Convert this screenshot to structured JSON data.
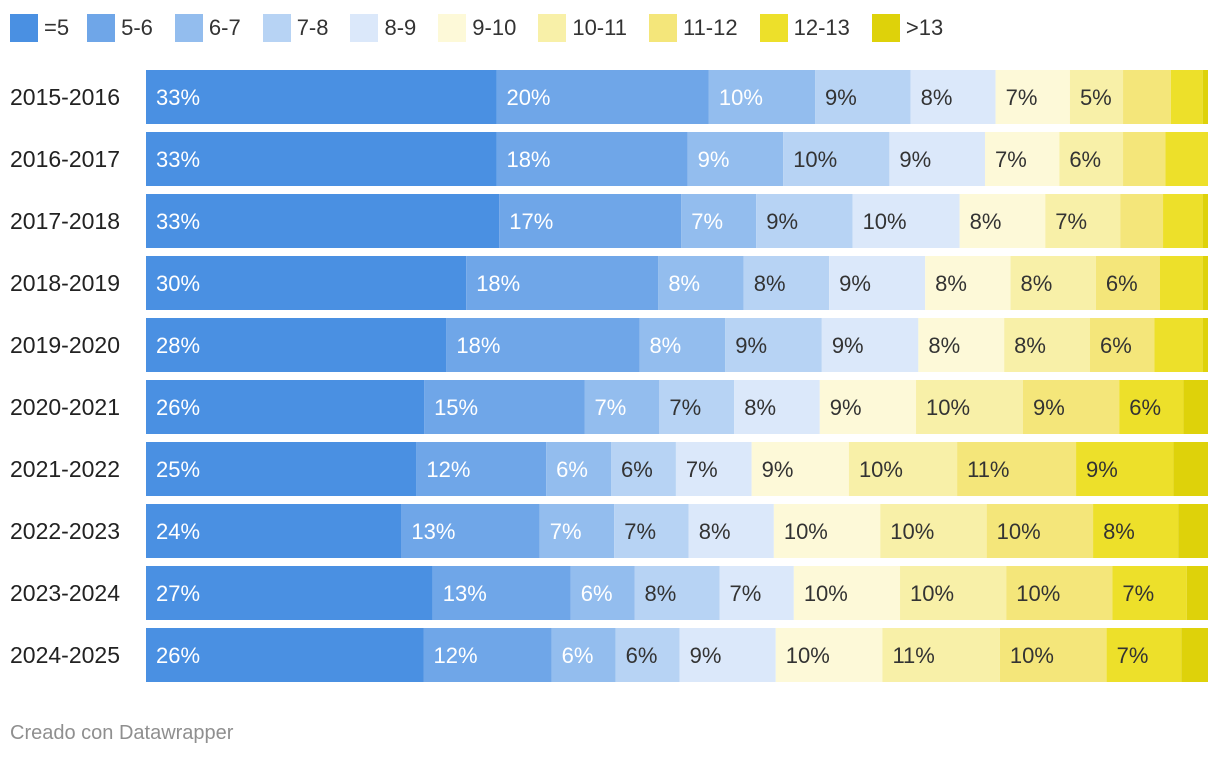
{
  "chart_data": {
    "type": "bar",
    "orientation": "horizontal",
    "stacked": true,
    "normalized_to": 100,
    "categories": [
      "2015-2016",
      "2016-2017",
      "2017-2018",
      "2018-2019",
      "2019-2020",
      "2020-2021",
      "2021-2022",
      "2022-2023",
      "2023-2024",
      "2024-2025"
    ],
    "series": [
      {
        "name": "=5",
        "color": "#4a90e2",
        "values": [
          33,
          33,
          33,
          30,
          28,
          26,
          25,
          24,
          27,
          26
        ],
        "labels": [
          "33%",
          "33%",
          "33%",
          "30%",
          "28%",
          "26%",
          "25%",
          "24%",
          "27%",
          "26%"
        ]
      },
      {
        "name": "5-6",
        "color": "#6fa6e8",
        "values": [
          20,
          18,
          17,
          18,
          18,
          15,
          12,
          13,
          13,
          12
        ],
        "labels": [
          "20%",
          "18%",
          "17%",
          "18%",
          "18%",
          "15%",
          "12%",
          "13%",
          "13%",
          "12%"
        ]
      },
      {
        "name": "6-7",
        "color": "#93bdee",
        "values": [
          10,
          9,
          7,
          8,
          8,
          7,
          6,
          7,
          6,
          6
        ],
        "labels": [
          "10%",
          "9%",
          "7%",
          "8%",
          "8%",
          "7%",
          "6%",
          "7%",
          "6%",
          "6%"
        ]
      },
      {
        "name": "7-8",
        "color": "#b7d3f4",
        "values": [
          9,
          10,
          9,
          8,
          9,
          7,
          6,
          7,
          8,
          6
        ],
        "labels": [
          "9%",
          "10%",
          "9%",
          "8%",
          "9%",
          "7%",
          "6%",
          "7%",
          "8%",
          "6%"
        ]
      },
      {
        "name": "8-9",
        "color": "#dbe8fa",
        "values": [
          8,
          9,
          10,
          9,
          9,
          8,
          7,
          8,
          7,
          9
        ],
        "labels": [
          "8%",
          "9%",
          "10%",
          "9%",
          "9%",
          "8%",
          "7%",
          "8%",
          "7%",
          "9%"
        ]
      },
      {
        "name": "9-10",
        "color": "#fdf9d8",
        "values": [
          7,
          7,
          8,
          8,
          8,
          9,
          9,
          10,
          10,
          10
        ],
        "labels": [
          "7%",
          "7%",
          "8%",
          "8%",
          "8%",
          "9%",
          "9%",
          "10%",
          "10%",
          "10%"
        ]
      },
      {
        "name": "10-11",
        "color": "#f8f0a8",
        "values": [
          5,
          6,
          7,
          8,
          8,
          10,
          10,
          10,
          10,
          11
        ],
        "labels": [
          "5%",
          "6%",
          "7%",
          "8%",
          "8%",
          "10%",
          "10%",
          "10%",
          "10%",
          "11%"
        ]
      },
      {
        "name": "11-12",
        "color": "#f4e67a",
        "values": [
          4.5,
          4,
          4,
          6,
          6,
          9,
          11,
          10,
          10,
          10
        ],
        "labels": [
          "",
          "",
          "",
          "6%",
          "6%",
          "9%",
          "11%",
          "10%",
          "10%",
          "10%"
        ]
      },
      {
        "name": "12-13",
        "color": "#ede02a",
        "values": [
          3,
          4,
          3.7,
          4,
          4.5,
          6,
          9,
          8,
          7,
          7
        ],
        "labels": [
          "",
          "",
          "",
          "",
          "",
          "6%",
          "9%",
          "8%",
          "7%",
          "7%"
        ]
      },
      {
        "name": ">13",
        "color": "#ded20a",
        "values": [
          0.5,
          0,
          0.5,
          0.5,
          0.5,
          2.3,
          3.2,
          2.8,
          2,
          2.5
        ],
        "labels": [
          "",
          "",
          "",
          "",
          "",
          "",
          "",
          "",
          "",
          ""
        ]
      }
    ],
    "label_colors": {
      "light": "#ffffff",
      "dark": "#333333"
    }
  },
  "footer": {
    "credit": "Creado con Datawrapper"
  }
}
